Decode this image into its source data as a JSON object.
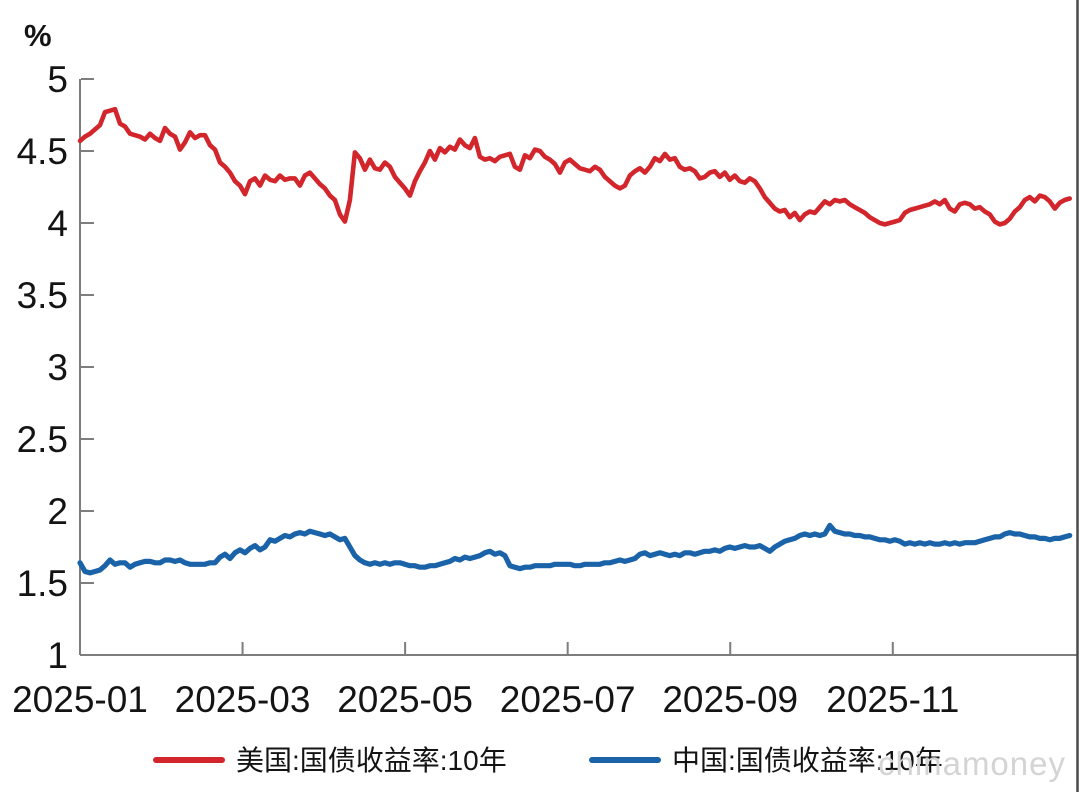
{
  "watermark": "chinamoney",
  "colors": {
    "us_line": "#d2262c",
    "china_line": "#1a63a8",
    "axis": "#7d7d7d",
    "text": "#141414",
    "watermark": "#d4d4d4",
    "background": "#ffffff"
  },
  "chart_data": {
    "type": "line",
    "title": "",
    "xlabel": "",
    "ylabel": "%",
    "grid": false,
    "legend_position": "bottom",
    "ylim": [
      1,
      5
    ],
    "y_ticks": [
      5,
      4.5,
      4,
      3.5,
      3,
      2.5,
      2,
      1.5,
      1
    ],
    "x_unit": "months since 2025-01-01",
    "xlim": [
      0,
      12.18
    ],
    "x_ticks": [
      {
        "t": 0,
        "label": "2025-01"
      },
      {
        "t": 2,
        "label": "2025-03"
      },
      {
        "t": 4,
        "label": "2025-05"
      },
      {
        "t": 6,
        "label": "2025-07"
      },
      {
        "t": 8,
        "label": "2025-09"
      },
      {
        "t": 10,
        "label": "2025-11"
      }
    ],
    "series": [
      {
        "name": "美国:国债收益率:10年",
        "color": "#d2262c",
        "stroke_width": 4.6,
        "x_start": 0,
        "x_step": 0.0615,
        "values": [
          4.57,
          4.6,
          4.62,
          4.65,
          4.68,
          4.77,
          4.78,
          4.79,
          4.69,
          4.67,
          4.62,
          4.61,
          4.6,
          4.58,
          4.62,
          4.59,
          4.57,
          4.66,
          4.62,
          4.6,
          4.51,
          4.56,
          4.63,
          4.59,
          4.61,
          4.61,
          4.54,
          4.51,
          4.42,
          4.39,
          4.35,
          4.29,
          4.26,
          4.2,
          4.29,
          4.31,
          4.26,
          4.33,
          4.3,
          4.29,
          4.33,
          4.3,
          4.31,
          4.31,
          4.26,
          4.33,
          4.35,
          4.31,
          4.27,
          4.24,
          4.19,
          4.16,
          4.06,
          4.01,
          4.16,
          4.49,
          4.45,
          4.37,
          4.44,
          4.38,
          4.37,
          4.42,
          4.39,
          4.32,
          4.28,
          4.24,
          4.19,
          4.29,
          4.36,
          4.42,
          4.5,
          4.44,
          4.52,
          4.49,
          4.53,
          4.51,
          4.58,
          4.54,
          4.52,
          4.59,
          4.46,
          4.44,
          4.45,
          4.43,
          4.46,
          4.47,
          4.48,
          4.39,
          4.37,
          4.47,
          4.45,
          4.51,
          4.5,
          4.46,
          4.44,
          4.41,
          4.35,
          4.42,
          4.44,
          4.41,
          4.38,
          4.37,
          4.36,
          4.39,
          4.37,
          4.32,
          4.29,
          4.26,
          4.24,
          4.26,
          4.33,
          4.36,
          4.38,
          4.35,
          4.39,
          4.45,
          4.43,
          4.48,
          4.44,
          4.45,
          4.39,
          4.37,
          4.38,
          4.36,
          4.31,
          4.32,
          4.35,
          4.36,
          4.32,
          4.35,
          4.3,
          4.33,
          4.29,
          4.28,
          4.31,
          4.29,
          4.24,
          4.18,
          4.14,
          4.1,
          4.08,
          4.09,
          4.04,
          4.07,
          4.02,
          4.06,
          4.08,
          4.07,
          4.11,
          4.15,
          4.13,
          4.16,
          4.15,
          4.16,
          4.13,
          4.11,
          4.09,
          4.07,
          4.04,
          4.02,
          4.0,
          3.99,
          4.0,
          4.01,
          4.02,
          4.07,
          4.09,
          4.1,
          4.11,
          4.12,
          4.13,
          4.15,
          4.13,
          4.16,
          4.1,
          4.08,
          4.13,
          4.14,
          4.13,
          4.1,
          4.11,
          4.08,
          4.06,
          4.01,
          3.99,
          4.0,
          4.03,
          4.08,
          4.11,
          4.16,
          4.18,
          4.15,
          4.19,
          4.18,
          4.15,
          4.1,
          4.14,
          4.16,
          4.17
        ]
      },
      {
        "name": "中国:国债收益率:10年",
        "color": "#1a63a8",
        "stroke_width": 5.2,
        "x_start": 0,
        "x_step": 0.0615,
        "values": [
          1.64,
          1.58,
          1.57,
          1.58,
          1.59,
          1.62,
          1.66,
          1.63,
          1.64,
          1.64,
          1.61,
          1.63,
          1.64,
          1.65,
          1.65,
          1.64,
          1.64,
          1.66,
          1.66,
          1.65,
          1.66,
          1.64,
          1.63,
          1.63,
          1.63,
          1.63,
          1.64,
          1.64,
          1.68,
          1.7,
          1.67,
          1.71,
          1.73,
          1.71,
          1.74,
          1.76,
          1.73,
          1.75,
          1.8,
          1.79,
          1.81,
          1.83,
          1.82,
          1.84,
          1.85,
          1.84,
          1.86,
          1.85,
          1.84,
          1.83,
          1.84,
          1.82,
          1.8,
          1.81,
          1.75,
          1.69,
          1.66,
          1.64,
          1.63,
          1.64,
          1.63,
          1.64,
          1.63,
          1.64,
          1.64,
          1.63,
          1.62,
          1.62,
          1.61,
          1.61,
          1.62,
          1.62,
          1.63,
          1.64,
          1.65,
          1.67,
          1.66,
          1.68,
          1.67,
          1.68,
          1.69,
          1.71,
          1.72,
          1.7,
          1.71,
          1.69,
          1.62,
          1.61,
          1.6,
          1.61,
          1.61,
          1.62,
          1.62,
          1.62,
          1.62,
          1.63,
          1.63,
          1.63,
          1.63,
          1.62,
          1.62,
          1.63,
          1.63,
          1.63,
          1.63,
          1.64,
          1.64,
          1.65,
          1.66,
          1.65,
          1.66,
          1.67,
          1.7,
          1.71,
          1.69,
          1.7,
          1.71,
          1.7,
          1.69,
          1.7,
          1.69,
          1.71,
          1.71,
          1.7,
          1.71,
          1.72,
          1.72,
          1.73,
          1.72,
          1.74,
          1.75,
          1.74,
          1.75,
          1.76,
          1.75,
          1.75,
          1.76,
          1.74,
          1.72,
          1.75,
          1.77,
          1.79,
          1.8,
          1.81,
          1.83,
          1.84,
          1.83,
          1.84,
          1.83,
          1.84,
          1.9,
          1.86,
          1.85,
          1.84,
          1.84,
          1.83,
          1.83,
          1.82,
          1.82,
          1.81,
          1.8,
          1.8,
          1.79,
          1.8,
          1.79,
          1.77,
          1.78,
          1.77,
          1.78,
          1.77,
          1.78,
          1.77,
          1.77,
          1.78,
          1.77,
          1.78,
          1.77,
          1.78,
          1.78,
          1.78,
          1.79,
          1.8,
          1.81,
          1.82,
          1.82,
          1.84,
          1.85,
          1.84,
          1.84,
          1.83,
          1.82,
          1.82,
          1.81,
          1.81,
          1.8,
          1.81,
          1.81,
          1.82,
          1.83
        ]
      }
    ]
  }
}
